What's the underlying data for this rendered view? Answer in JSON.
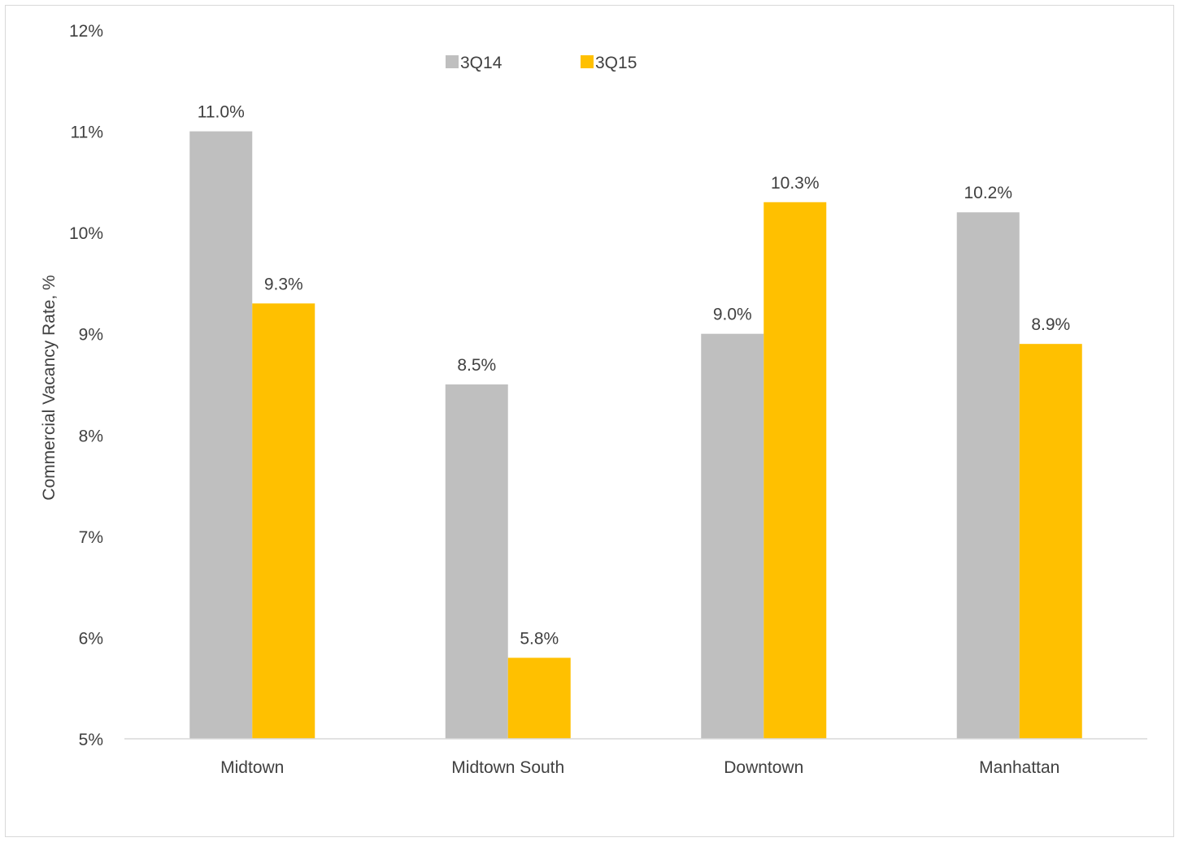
{
  "chart_data": {
    "type": "bar",
    "title": "",
    "xlabel": "",
    "ylabel": "Commercial Vacancy Rate, %",
    "categories": [
      "Midtown",
      "Midtown South",
      "Downtown",
      "Manhattan"
    ],
    "series": [
      {
        "name": "3Q14",
        "color": "#bfbfbf",
        "values": [
          11.0,
          8.5,
          9.0,
          10.2
        ],
        "labels": [
          "11.0%",
          "8.5%",
          "9.0%",
          "10.2%"
        ]
      },
      {
        "name": "3Q15",
        "color": "#ffc000",
        "values": [
          9.3,
          5.8,
          10.3,
          8.9
        ],
        "labels": [
          "9.3%",
          "5.8%",
          "10.3%",
          "8.9%"
        ]
      }
    ],
    "ylim": [
      5,
      12
    ],
    "yticks": [
      5,
      6,
      7,
      8,
      9,
      10,
      11,
      12
    ],
    "ytick_labels": [
      "5%",
      "6%",
      "7%",
      "8%",
      "9%",
      "10%",
      "11%",
      "12%"
    ],
    "grid": false,
    "legend_position": "top-center"
  }
}
